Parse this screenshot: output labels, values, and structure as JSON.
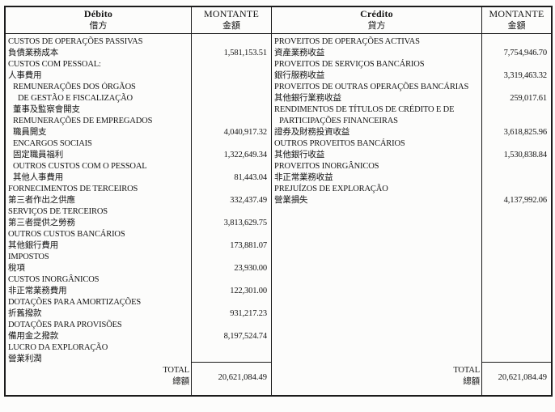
{
  "document": {
    "colors": {
      "border": "#1b1b1b",
      "text": "#141414",
      "background": "#fcfcfb"
    },
    "debit_section": {
      "header": {
        "label_pt": "Débito",
        "label_zh": "借方"
      },
      "amount_header": {
        "label_pt": "MONTANTE",
        "label_zh": "金額"
      },
      "lines": [
        {
          "text": "CUSTOS DE OPERAÇÕES PASSIVAS",
          "indent": 0,
          "amount": ""
        },
        {
          "text": "負債業務成本",
          "indent": 0,
          "amount": "1,581,153.51"
        },
        {
          "text": "CUSTOS COM PESSOAL:",
          "indent": 0,
          "amount": ""
        },
        {
          "text": "人事費用",
          "indent": 0,
          "amount": ""
        },
        {
          "text": "REMUNERAÇÕES DOS ÓRGÃOS",
          "indent": 1,
          "amount": ""
        },
        {
          "text": "DE GESTÃO E FISCALIZAÇÃO",
          "indent": 2,
          "amount": ""
        },
        {
          "text": "董事及監察會開支",
          "indent": 1,
          "amount": ""
        },
        {
          "text": "REMUNERAÇÕES DE EMPREGADOS",
          "indent": 1,
          "amount": ""
        },
        {
          "text": "職員開支",
          "indent": 1,
          "amount": "4,040,917.32"
        },
        {
          "text": "ENCARGOS SOCIAIS",
          "indent": 1,
          "amount": ""
        },
        {
          "text": "固定職員福利",
          "indent": 1,
          "amount": "1,322,649.34"
        },
        {
          "text": "OUTROS CUSTOS COM O PESSOAL",
          "indent": 1,
          "amount": ""
        },
        {
          "text": "其他人事費用",
          "indent": 1,
          "amount": "81,443.04"
        },
        {
          "text": "FORNECIMENTOS DE TERCEIROS",
          "indent": 0,
          "amount": ""
        },
        {
          "text": "第三者作出之供應",
          "indent": 0,
          "amount": "332,437.49"
        },
        {
          "text": "SERVIÇOS DE TERCEIROS",
          "indent": 0,
          "amount": ""
        },
        {
          "text": "第三者提供之勞務",
          "indent": 0,
          "amount": "3,813,629.75"
        },
        {
          "text": "OUTROS CUSTOS BANCÁRIOS",
          "indent": 0,
          "amount": ""
        },
        {
          "text": "其他銀行費用",
          "indent": 0,
          "amount": "173,881.07"
        },
        {
          "text": "IMPOSTOS",
          "indent": 0,
          "amount": ""
        },
        {
          "text": "稅項",
          "indent": 0,
          "amount": "23,930.00"
        },
        {
          "text": "CUSTOS INORGÂNICOS",
          "indent": 0,
          "amount": ""
        },
        {
          "text": "非正常業務費用",
          "indent": 0,
          "amount": "122,301.00"
        },
        {
          "text": "DOTAÇÕES PARA AMORTIZAÇÕES",
          "indent": 0,
          "amount": ""
        },
        {
          "text": "折舊撥款",
          "indent": 0,
          "amount": "931,217.23"
        },
        {
          "text": "DOTAÇÕES PARA PROVISÕES",
          "indent": 0,
          "amount": ""
        },
        {
          "text": "備用金之撥款",
          "indent": 0,
          "amount": "8,197,524.74"
        },
        {
          "text": "LUCRO DA EXPLORAÇÃO",
          "indent": 0,
          "amount": ""
        },
        {
          "text": "營業利潤",
          "indent": 0,
          "amount": ""
        }
      ],
      "total": {
        "label_pt": "TOTAL",
        "label_zh": "總額",
        "amount": "20,621,084.49"
      }
    },
    "credit_section": {
      "header": {
        "label_pt": "Crédito",
        "label_zh": "貸方"
      },
      "amount_header": {
        "label_pt": "MONTANTE",
        "label_zh": "金額"
      },
      "lines": [
        {
          "text": "PROVEITOS DE OPERAÇÕES ACTIVAS",
          "indent": 0,
          "amount": ""
        },
        {
          "text": "資產業務收益",
          "indent": 0,
          "amount": "7,754,946.70"
        },
        {
          "text": "PROVEITOS DE SERVIÇOS BANCÁRIOS",
          "indent": 0,
          "amount": ""
        },
        {
          "text": "銀行服務收益",
          "indent": 0,
          "amount": "3,319,463.32"
        },
        {
          "text": "PROVEITOS DE OUTRAS OPERAÇÕES BANCÁRIAS",
          "indent": 0,
          "amount": ""
        },
        {
          "text": "其他銀行業務收益",
          "indent": 0,
          "amount": "259,017.61"
        },
        {
          "text": "RENDIMENTOS DE TÍTULOS DE CRÉDITO E DE",
          "indent": 0,
          "amount": ""
        },
        {
          "text": "PARTICIPAÇÕES FINANCEIRAS",
          "indent": 1,
          "amount": ""
        },
        {
          "text": "證券及財務投資收益",
          "indent": 0,
          "amount": "3,618,825.96"
        },
        {
          "text": "OUTROS PROVEITOS BANCÁRIOS",
          "indent": 0,
          "amount": ""
        },
        {
          "text": "其他銀行收益",
          "indent": 0,
          "amount": "1,530,838.84"
        },
        {
          "text": "PROVEITOS INORGÂNICOS",
          "indent": 0,
          "amount": ""
        },
        {
          "text": "非正常業務收益",
          "indent": 0,
          "amount": ""
        },
        {
          "text": "PREJUÍZOS DE EXPLORAÇÃO",
          "indent": 0,
          "amount": ""
        },
        {
          "text": "營業損失",
          "indent": 0,
          "amount": "4,137,992.06"
        }
      ],
      "total": {
        "label_pt": "TOTAL",
        "label_zh": "總額",
        "amount": "20,621,084.49"
      }
    }
  }
}
